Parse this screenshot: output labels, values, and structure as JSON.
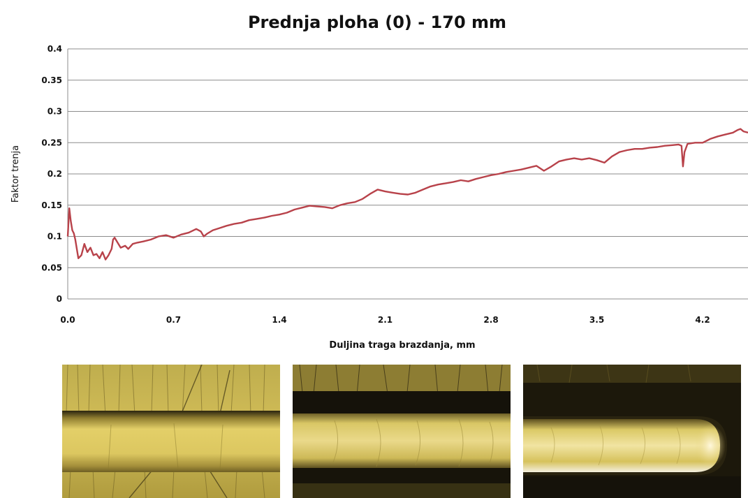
{
  "chart_data": {
    "type": "line",
    "title": "Prednja ploha (0) - 170 mm",
    "xlabel": "Duljina traga brazdanja, mm",
    "ylabel": "Faktor trenja",
    "xlim": [
      0,
      4.5
    ],
    "ylim": [
      0,
      0.4
    ],
    "x_ticks": [
      "0.0",
      "0.7",
      "1.4",
      "2.1",
      "2.8",
      "3.5",
      "4.2"
    ],
    "y_ticks": [
      "0",
      "0.05",
      "0.1",
      "0.15",
      "0.2",
      "0.25",
      "0.3",
      "0.35",
      "0.4"
    ],
    "grid": "horizontal",
    "legend": "none",
    "series": [
      {
        "color": "#b8424a",
        "points": [
          [
            0.0,
            0.1
          ],
          [
            0.01,
            0.145
          ],
          [
            0.02,
            0.125
          ],
          [
            0.03,
            0.11
          ],
          [
            0.04,
            0.105
          ],
          [
            0.05,
            0.095
          ],
          [
            0.06,
            0.08
          ],
          [
            0.07,
            0.065
          ],
          [
            0.09,
            0.07
          ],
          [
            0.11,
            0.088
          ],
          [
            0.13,
            0.075
          ],
          [
            0.15,
            0.082
          ],
          [
            0.17,
            0.07
          ],
          [
            0.19,
            0.072
          ],
          [
            0.21,
            0.065
          ],
          [
            0.23,
            0.075
          ],
          [
            0.25,
            0.063
          ],
          [
            0.27,
            0.07
          ],
          [
            0.29,
            0.08
          ],
          [
            0.3,
            0.095
          ],
          [
            0.31,
            0.098
          ],
          [
            0.33,
            0.09
          ],
          [
            0.35,
            0.082
          ],
          [
            0.38,
            0.085
          ],
          [
            0.4,
            0.08
          ],
          [
            0.43,
            0.088
          ],
          [
            0.46,
            0.09
          ],
          [
            0.5,
            0.092
          ],
          [
            0.55,
            0.095
          ],
          [
            0.6,
            0.1
          ],
          [
            0.65,
            0.102
          ],
          [
            0.7,
            0.098
          ],
          [
            0.75,
            0.103
          ],
          [
            0.8,
            0.106
          ],
          [
            0.85,
            0.112
          ],
          [
            0.88,
            0.108
          ],
          [
            0.9,
            0.1
          ],
          [
            0.92,
            0.104
          ],
          [
            0.96,
            0.11
          ],
          [
            1.0,
            0.113
          ],
          [
            1.05,
            0.117
          ],
          [
            1.1,
            0.12
          ],
          [
            1.15,
            0.122
          ],
          [
            1.2,
            0.126
          ],
          [
            1.25,
            0.128
          ],
          [
            1.3,
            0.13
          ],
          [
            1.35,
            0.133
          ],
          [
            1.4,
            0.135
          ],
          [
            1.45,
            0.138
          ],
          [
            1.5,
            0.143
          ],
          [
            1.55,
            0.146
          ],
          [
            1.6,
            0.149
          ],
          [
            1.65,
            0.148
          ],
          [
            1.7,
            0.147
          ],
          [
            1.75,
            0.145
          ],
          [
            1.8,
            0.15
          ],
          [
            1.85,
            0.153
          ],
          [
            1.9,
            0.155
          ],
          [
            1.95,
            0.16
          ],
          [
            2.0,
            0.168
          ],
          [
            2.05,
            0.175
          ],
          [
            2.1,
            0.172
          ],
          [
            2.15,
            0.17
          ],
          [
            2.2,
            0.168
          ],
          [
            2.25,
            0.167
          ],
          [
            2.3,
            0.17
          ],
          [
            2.35,
            0.175
          ],
          [
            2.4,
            0.18
          ],
          [
            2.45,
            0.183
          ],
          [
            2.5,
            0.185
          ],
          [
            2.55,
            0.187
          ],
          [
            2.6,
            0.19
          ],
          [
            2.65,
            0.188
          ],
          [
            2.7,
            0.192
          ],
          [
            2.75,
            0.195
          ],
          [
            2.8,
            0.198
          ],
          [
            2.85,
            0.2
          ],
          [
            2.9,
            0.203
          ],
          [
            2.95,
            0.205
          ],
          [
            3.0,
            0.207
          ],
          [
            3.05,
            0.21
          ],
          [
            3.1,
            0.213
          ],
          [
            3.15,
            0.205
          ],
          [
            3.2,
            0.212
          ],
          [
            3.25,
            0.22
          ],
          [
            3.3,
            0.223
          ],
          [
            3.35,
            0.225
          ],
          [
            3.4,
            0.223
          ],
          [
            3.45,
            0.225
          ],
          [
            3.5,
            0.222
          ],
          [
            3.55,
            0.218
          ],
          [
            3.6,
            0.228
          ],
          [
            3.65,
            0.235
          ],
          [
            3.7,
            0.238
          ],
          [
            3.75,
            0.24
          ],
          [
            3.8,
            0.24
          ],
          [
            3.85,
            0.242
          ],
          [
            3.9,
            0.243
          ],
          [
            3.95,
            0.245
          ],
          [
            4.0,
            0.246
          ],
          [
            4.04,
            0.247
          ],
          [
            4.06,
            0.245
          ],
          [
            4.07,
            0.212
          ],
          [
            4.08,
            0.235
          ],
          [
            4.1,
            0.248
          ],
          [
            4.15,
            0.25
          ],
          [
            4.2,
            0.25
          ],
          [
            4.25,
            0.256
          ],
          [
            4.3,
            0.26
          ],
          [
            4.35,
            0.263
          ],
          [
            4.4,
            0.266
          ],
          [
            4.43,
            0.27
          ],
          [
            4.45,
            0.272
          ],
          [
            4.47,
            0.268
          ],
          [
            4.5,
            0.266
          ]
        ]
      }
    ]
  },
  "photos": [
    {
      "name": "groove-middle-micrograph"
    },
    {
      "name": "groove-near-end-micrograph"
    },
    {
      "name": "groove-end-micrograph"
    }
  ],
  "colors": {
    "line": "#b8424a",
    "grid": "#8c8c8c",
    "background": "#ffffff",
    "surface_gold": "#c9b24a",
    "groove_gold": "#e6d36a",
    "shadow": "#1a160a"
  }
}
